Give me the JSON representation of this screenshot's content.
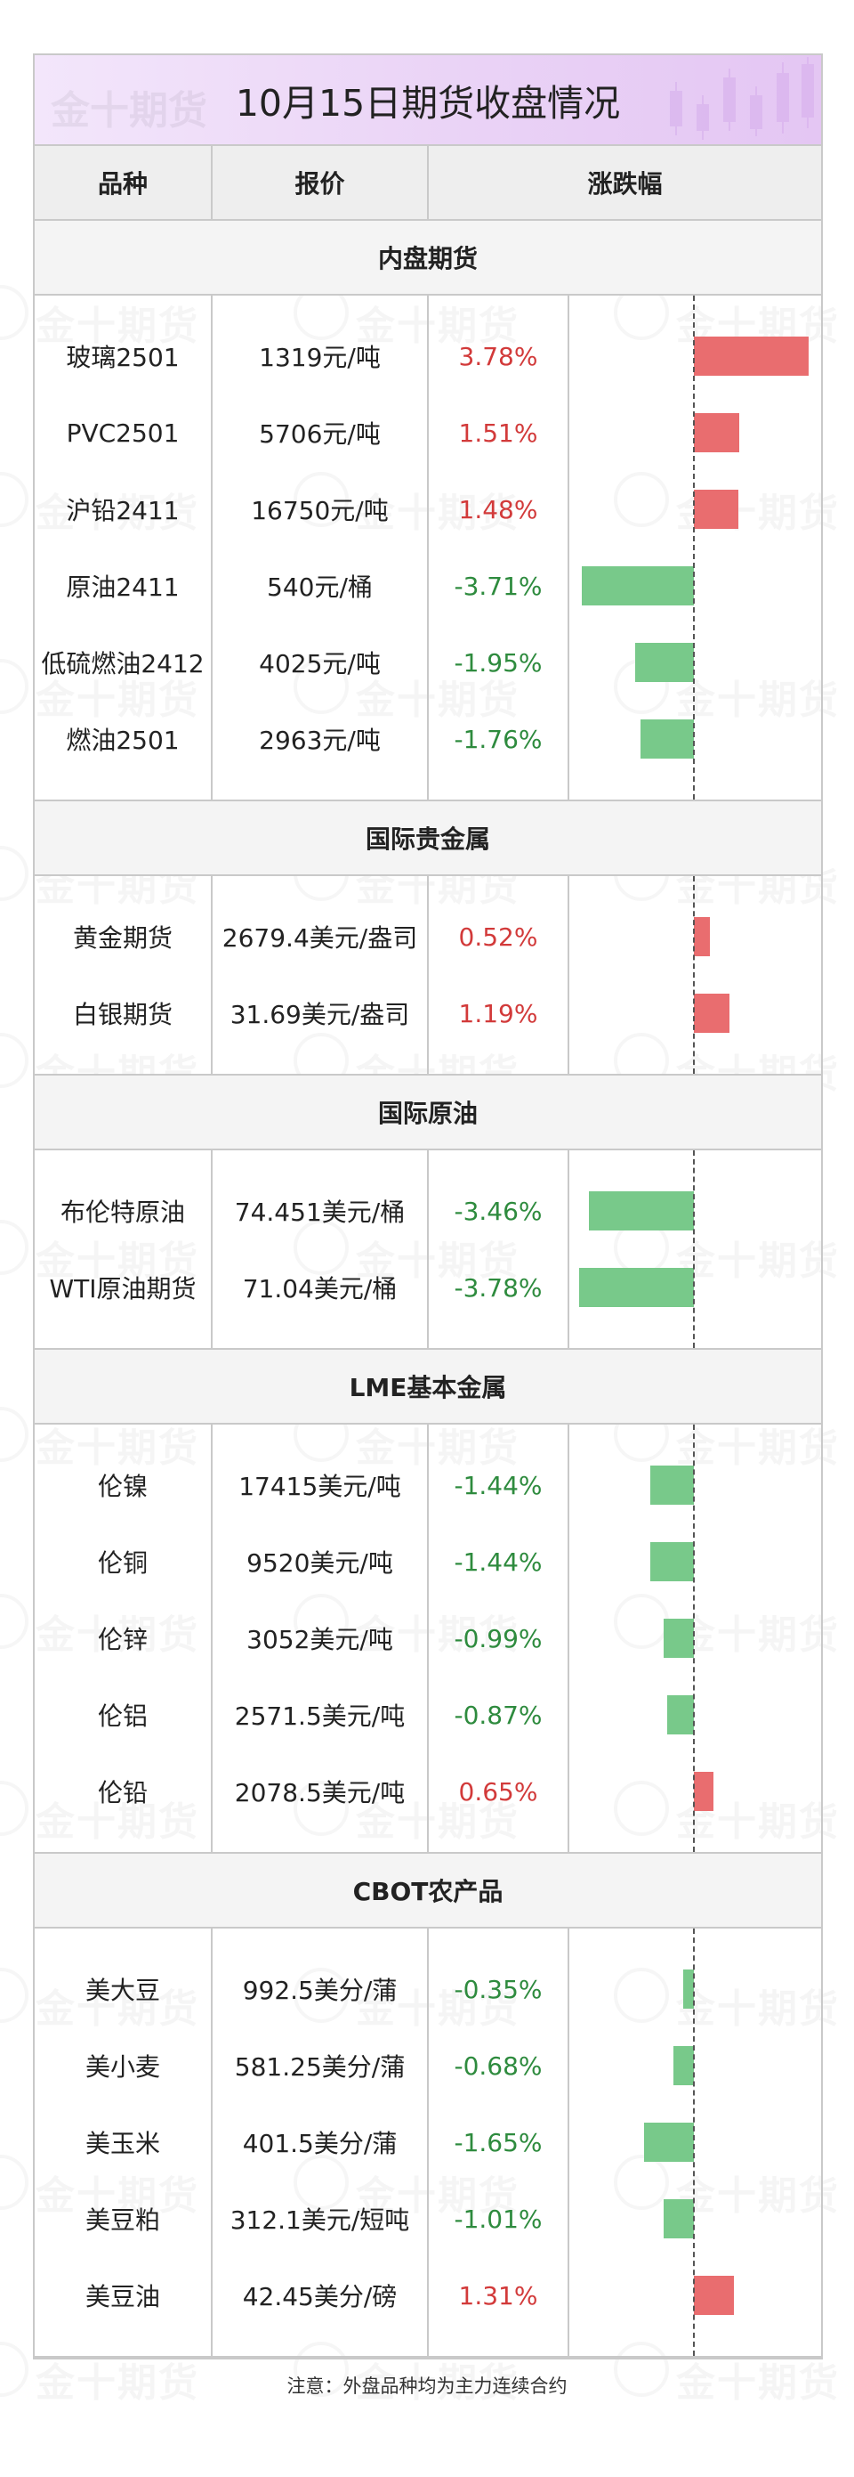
{
  "title": "10月15日期货收盘情况",
  "watermark": "金十期货",
  "headers": {
    "name": "品种",
    "price": "报价",
    "change": "涨跌幅"
  },
  "bar_scale_max": 4.0,
  "colors": {
    "up": "#e96d6f",
    "down": "#78c98a",
    "up_text": "#d23a3a",
    "down_text": "#2e8b3e",
    "title_bg": "#ead3f6"
  },
  "sections": [
    {
      "title": "内盘期货",
      "rows": [
        {
          "name": "玻璃2501",
          "price": "1319元/吨",
          "change_text": "3.78%",
          "change": 3.78
        },
        {
          "name": "PVC2501",
          "price": "5706元/吨",
          "change_text": "1.51%",
          "change": 1.51
        },
        {
          "name": "沪铅2411",
          "price": "16750元/吨",
          "change_text": "1.48%",
          "change": 1.48
        },
        {
          "name": "原油2411",
          "price": "540元/桶",
          "change_text": "-3.71%",
          "change": -3.71
        },
        {
          "name": "低硫燃油2412",
          "price": "4025元/吨",
          "change_text": "-1.95%",
          "change": -1.95
        },
        {
          "name": "燃油2501",
          "price": "2963元/吨",
          "change_text": "-1.76%",
          "change": -1.76
        }
      ]
    },
    {
      "title": "国际贵金属",
      "rows": [
        {
          "name": "黄金期货",
          "price": "2679.4美元/盎司",
          "change_text": "0.52%",
          "change": 0.52
        },
        {
          "name": "白银期货",
          "price": "31.69美元/盎司",
          "change_text": "1.19%",
          "change": 1.19
        }
      ]
    },
    {
      "title": "国际原油",
      "rows": [
        {
          "name": "布伦特原油",
          "price": "74.451美元/桶",
          "change_text": "-3.46%",
          "change": -3.46
        },
        {
          "name": "WTI原油期货",
          "price": "71.04美元/桶",
          "change_text": "-3.78%",
          "change": -3.78
        }
      ]
    },
    {
      "title": "LME基本金属",
      "rows": [
        {
          "name": "伦镍",
          "price": "17415美元/吨",
          "change_text": "-1.44%",
          "change": -1.44
        },
        {
          "name": "伦铜",
          "price": "9520美元/吨",
          "change_text": "-1.44%",
          "change": -1.44
        },
        {
          "name": "伦锌",
          "price": "3052美元/吨",
          "change_text": "-0.99%",
          "change": -0.99
        },
        {
          "name": "伦铝",
          "price": "2571.5美元/吨",
          "change_text": "-0.87%",
          "change": -0.87
        },
        {
          "name": "伦铅",
          "price": "2078.5美元/吨",
          "change_text": "0.65%",
          "change": 0.65
        }
      ]
    },
    {
      "title": "CBOT农产品",
      "rows": [
        {
          "name": "美大豆",
          "price": "992.5美分/蒲",
          "change_text": "-0.35%",
          "change": -0.35
        },
        {
          "name": "美小麦",
          "price": "581.25美分/蒲",
          "change_text": "-0.68%",
          "change": -0.68
        },
        {
          "name": "美玉米",
          "price": "401.5美分/蒲",
          "change_text": "-1.65%",
          "change": -1.65
        },
        {
          "name": "美豆粕",
          "price": "312.1美元/短吨",
          "change_text": "-1.01%",
          "change": -1.01
        },
        {
          "name": "美豆油",
          "price": "42.45美分/磅",
          "change_text": "1.31%",
          "change": 1.31
        }
      ]
    }
  ],
  "footer": "注意：外盘品种均为主力连续合约"
}
